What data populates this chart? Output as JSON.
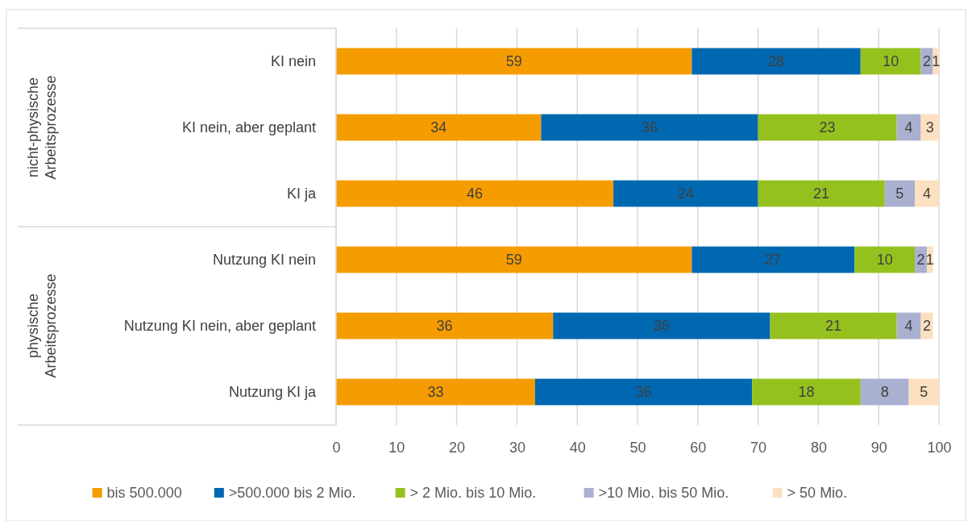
{
  "chart_data": {
    "type": "bar",
    "orientation": "horizontal",
    "stacked": true,
    "data_labels": true,
    "grid": "x",
    "legend": "bottom",
    "categories": [
      "KI nein",
      "KI nein, aber geplant",
      "KI ja",
      "Nutzung KI nein",
      "Nutzung KI nein, aber geplant",
      "Nutzung KI ja"
    ],
    "series": [
      {
        "name": "bis 500.000",
        "color": "#f59c00",
        "values": [
          59,
          34,
          46,
          59,
          36,
          33
        ]
      },
      {
        "name": ">500.000 bis 2 Mio.",
        "color": "#0068b0",
        "values": [
          28,
          36,
          24,
          27,
          36,
          36
        ]
      },
      {
        "name": "> 2 Mio. bis 10 Mio.",
        "color": "#95c11f",
        "values": [
          10,
          23,
          21,
          10,
          21,
          18
        ]
      },
      {
        "name": ">10 Mio. bis 50 Mio.",
        "color": "#a9b0d0",
        "values": [
          2,
          4,
          5,
          2,
          4,
          8
        ]
      },
      {
        "name": "> 50 Mio.",
        "color": "#fde0bf",
        "values": [
          1,
          3,
          4,
          1,
          2,
          5
        ]
      }
    ],
    "xlim": [
      0,
      100
    ],
    "xticks": [
      0,
      10,
      20,
      30,
      40,
      50,
      60,
      70,
      80,
      90,
      100
    ],
    "annotations": [
      "nicht-physische Arbeitsprozesse",
      "physische Arbeitsprozesse"
    ]
  }
}
